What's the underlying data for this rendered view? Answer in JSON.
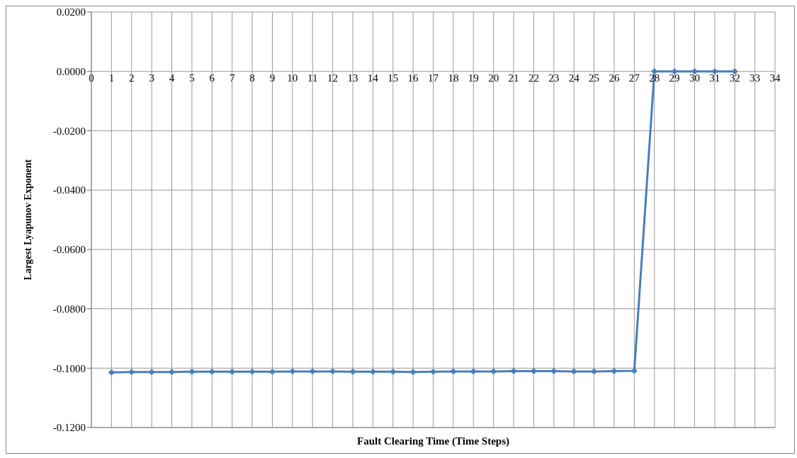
{
  "chart_data": {
    "type": "line",
    "xlabel": "Fault Clearing Time (Time Steps)",
    "ylabel": "Largest Lyapunov Exponent",
    "x": [
      1,
      2,
      3,
      4,
      5,
      6,
      7,
      8,
      9,
      10,
      11,
      12,
      13,
      14,
      15,
      16,
      17,
      18,
      19,
      20,
      21,
      22,
      23,
      24,
      25,
      26,
      27,
      28,
      29,
      30,
      31,
      32
    ],
    "series": [
      {
        "color": "#4a7ebb",
        "values": [
          -0.1014,
          -0.1013,
          -0.1013,
          -0.1013,
          -0.1012,
          -0.1012,
          -0.1012,
          -0.1012,
          -0.1012,
          -0.1011,
          -0.1011,
          -0.1011,
          -0.1012,
          -0.1012,
          -0.1012,
          -0.1013,
          -0.1012,
          -0.1011,
          -0.1011,
          -0.1011,
          -0.101,
          -0.101,
          -0.101,
          -0.1011,
          -0.1011,
          -0.101,
          -0.1009,
          0,
          0,
          0,
          0,
          0
        ]
      }
    ],
    "xlim": [
      0,
      34
    ],
    "xticks": [
      0,
      1,
      2,
      3,
      4,
      5,
      6,
      7,
      8,
      9,
      10,
      11,
      12,
      13,
      14,
      15,
      16,
      17,
      18,
      19,
      20,
      21,
      22,
      23,
      24,
      25,
      26,
      27,
      28,
      29,
      30,
      31,
      32,
      33,
      34
    ],
    "ylim": [
      -0.12,
      0.02
    ],
    "yticks": [
      {
        "value": -0.12,
        "label": "-0.1200"
      },
      {
        "value": -0.1,
        "label": "-0.1000"
      },
      {
        "value": -0.08,
        "label": "-0.0800"
      },
      {
        "value": -0.06,
        "label": "-0.0600"
      },
      {
        "value": -0.04,
        "label": "-0.0400"
      },
      {
        "value": -0.02,
        "label": "-0.0200"
      },
      {
        "value": 0,
        "label": "0.0000"
      },
      {
        "value": 0.02,
        "label": "0.0200"
      }
    ],
    "grid": true,
    "marker": "diamond",
    "line_style": "solid",
    "legend": false
  }
}
